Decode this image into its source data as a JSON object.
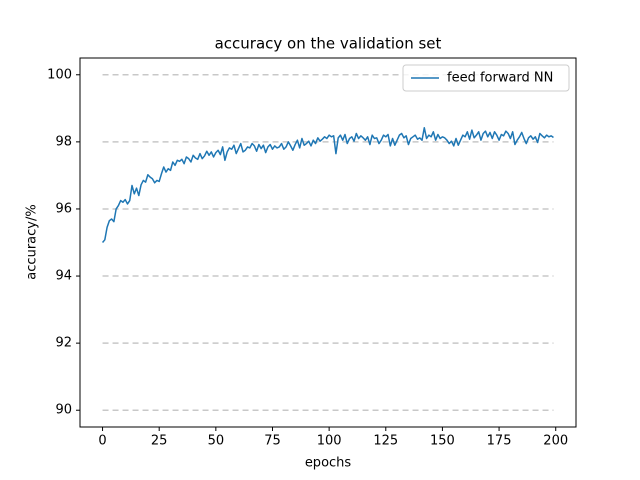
{
  "chart_data": {
    "type": "line",
    "title": "accuracy on the validation set",
    "x_label": "epochs",
    "y_label": "accuracy/%",
    "x": [
      0,
      1,
      2,
      3,
      4,
      5,
      6,
      7,
      8,
      9,
      10,
      11,
      12,
      13,
      14,
      15,
      16,
      17,
      18,
      19,
      20,
      21,
      22,
      23,
      24,
      25,
      26,
      27,
      28,
      29,
      30,
      31,
      32,
      33,
      34,
      35,
      36,
      37,
      38,
      39,
      40,
      41,
      42,
      43,
      44,
      45,
      46,
      47,
      48,
      49,
      50,
      51,
      52,
      53,
      54,
      55,
      56,
      57,
      58,
      59,
      60,
      61,
      62,
      63,
      64,
      65,
      66,
      67,
      68,
      69,
      70,
      71,
      72,
      73,
      74,
      75,
      76,
      77,
      78,
      79,
      80,
      81,
      82,
      83,
      84,
      85,
      86,
      87,
      88,
      89,
      90,
      91,
      92,
      93,
      94,
      95,
      96,
      97,
      98,
      99,
      100,
      101,
      102,
      103,
      104,
      105,
      106,
      107,
      108,
      109,
      110,
      111,
      112,
      113,
      114,
      115,
      116,
      117,
      118,
      119,
      120,
      121,
      122,
      123,
      124,
      125,
      126,
      127,
      128,
      129,
      130,
      131,
      132,
      133,
      134,
      135,
      136,
      137,
      138,
      139,
      140,
      141,
      142,
      143,
      144,
      145,
      146,
      147,
      148,
      149,
      150,
      151,
      152,
      153,
      154,
      155,
      156,
      157,
      158,
      159,
      160,
      161,
      162,
      163,
      164,
      165,
      166,
      167,
      168,
      169,
      170,
      171,
      172,
      173,
      174,
      175,
      176,
      177,
      178,
      179,
      180,
      181,
      182,
      183,
      184,
      185,
      186,
      187,
      188,
      189,
      190,
      191,
      192,
      193,
      194,
      195,
      196,
      197,
      198,
      199
    ],
    "series": [
      {
        "name": "feed forward NN",
        "color": "#1f77b4",
        "values": [
          95.0,
          95.08,
          95.45,
          95.65,
          95.7,
          95.62,
          96.0,
          96.1,
          96.25,
          96.2,
          96.28,
          96.15,
          96.25,
          96.7,
          96.45,
          96.62,
          96.4,
          96.72,
          96.85,
          96.8,
          97.02,
          96.95,
          96.9,
          96.78,
          96.85,
          96.82,
          97.05,
          97.25,
          97.1,
          97.2,
          97.15,
          97.4,
          97.3,
          97.45,
          97.42,
          97.48,
          97.35,
          97.55,
          97.5,
          97.4,
          97.6,
          97.52,
          97.48,
          97.65,
          97.5,
          97.58,
          97.72,
          97.6,
          97.7,
          97.55,
          97.68,
          97.75,
          97.62,
          97.85,
          97.45,
          97.7,
          97.82,
          97.78,
          97.9,
          97.65,
          97.8,
          97.95,
          97.7,
          97.75,
          97.85,
          97.82,
          97.95,
          97.88,
          97.72,
          97.92,
          97.8,
          97.9,
          97.68,
          97.85,
          97.92,
          97.78,
          97.88,
          97.82,
          97.85,
          97.95,
          97.78,
          97.85,
          98.0,
          97.88,
          97.75,
          97.92,
          98.05,
          97.82,
          98.1,
          97.9,
          97.95,
          98.02,
          97.88,
          98.05,
          97.95,
          98.12,
          98.02,
          98.08,
          98.15,
          98.1,
          98.2,
          98.15,
          98.18,
          97.65,
          98.12,
          98.2,
          98.05,
          98.22,
          97.95,
          98.1,
          98.15,
          98.02,
          98.25,
          98.1,
          98.18,
          98.12,
          98.05,
          98.15,
          97.92,
          98.2,
          98.1,
          98.12,
          97.95,
          98.05,
          98.2,
          98.15,
          98.22,
          97.88,
          98.1,
          97.9,
          98.05,
          98.2,
          98.25,
          98.12,
          98.18,
          97.92,
          98.1,
          98.15,
          98.2,
          98.08,
          98.12,
          98.05,
          98.42,
          98.1,
          98.2,
          98.15,
          98.3,
          98.05,
          98.22,
          98.1,
          98.15,
          98.12,
          98.05,
          97.95,
          98.02,
          97.88,
          98.1,
          97.9,
          98.05,
          98.2,
          98.15,
          98.3,
          98.08,
          98.35,
          98.12,
          98.2,
          98.3,
          98.05,
          98.25,
          98.32,
          98.15,
          98.28,
          98.1,
          98.3,
          98.2,
          98.05,
          98.22,
          98.18,
          98.32,
          98.25,
          98.1,
          98.3,
          97.92,
          98.05,
          98.15,
          98.28,
          98.1,
          97.95,
          98.12,
          98.18,
          98.08,
          98.15,
          97.98,
          98.25,
          98.18,
          98.12,
          98.2,
          98.15,
          98.18,
          98.13
        ]
      }
    ],
    "xlim": [
      -9.95,
      208.95
    ],
    "xticks": [
      0,
      25,
      50,
      75,
      100,
      125,
      150,
      175,
      200
    ],
    "ylim": [
      89.5,
      100.5
    ],
    "yticks": [
      90,
      92,
      94,
      96,
      98,
      100
    ],
    "grid": true,
    "legend": "upper right"
  }
}
